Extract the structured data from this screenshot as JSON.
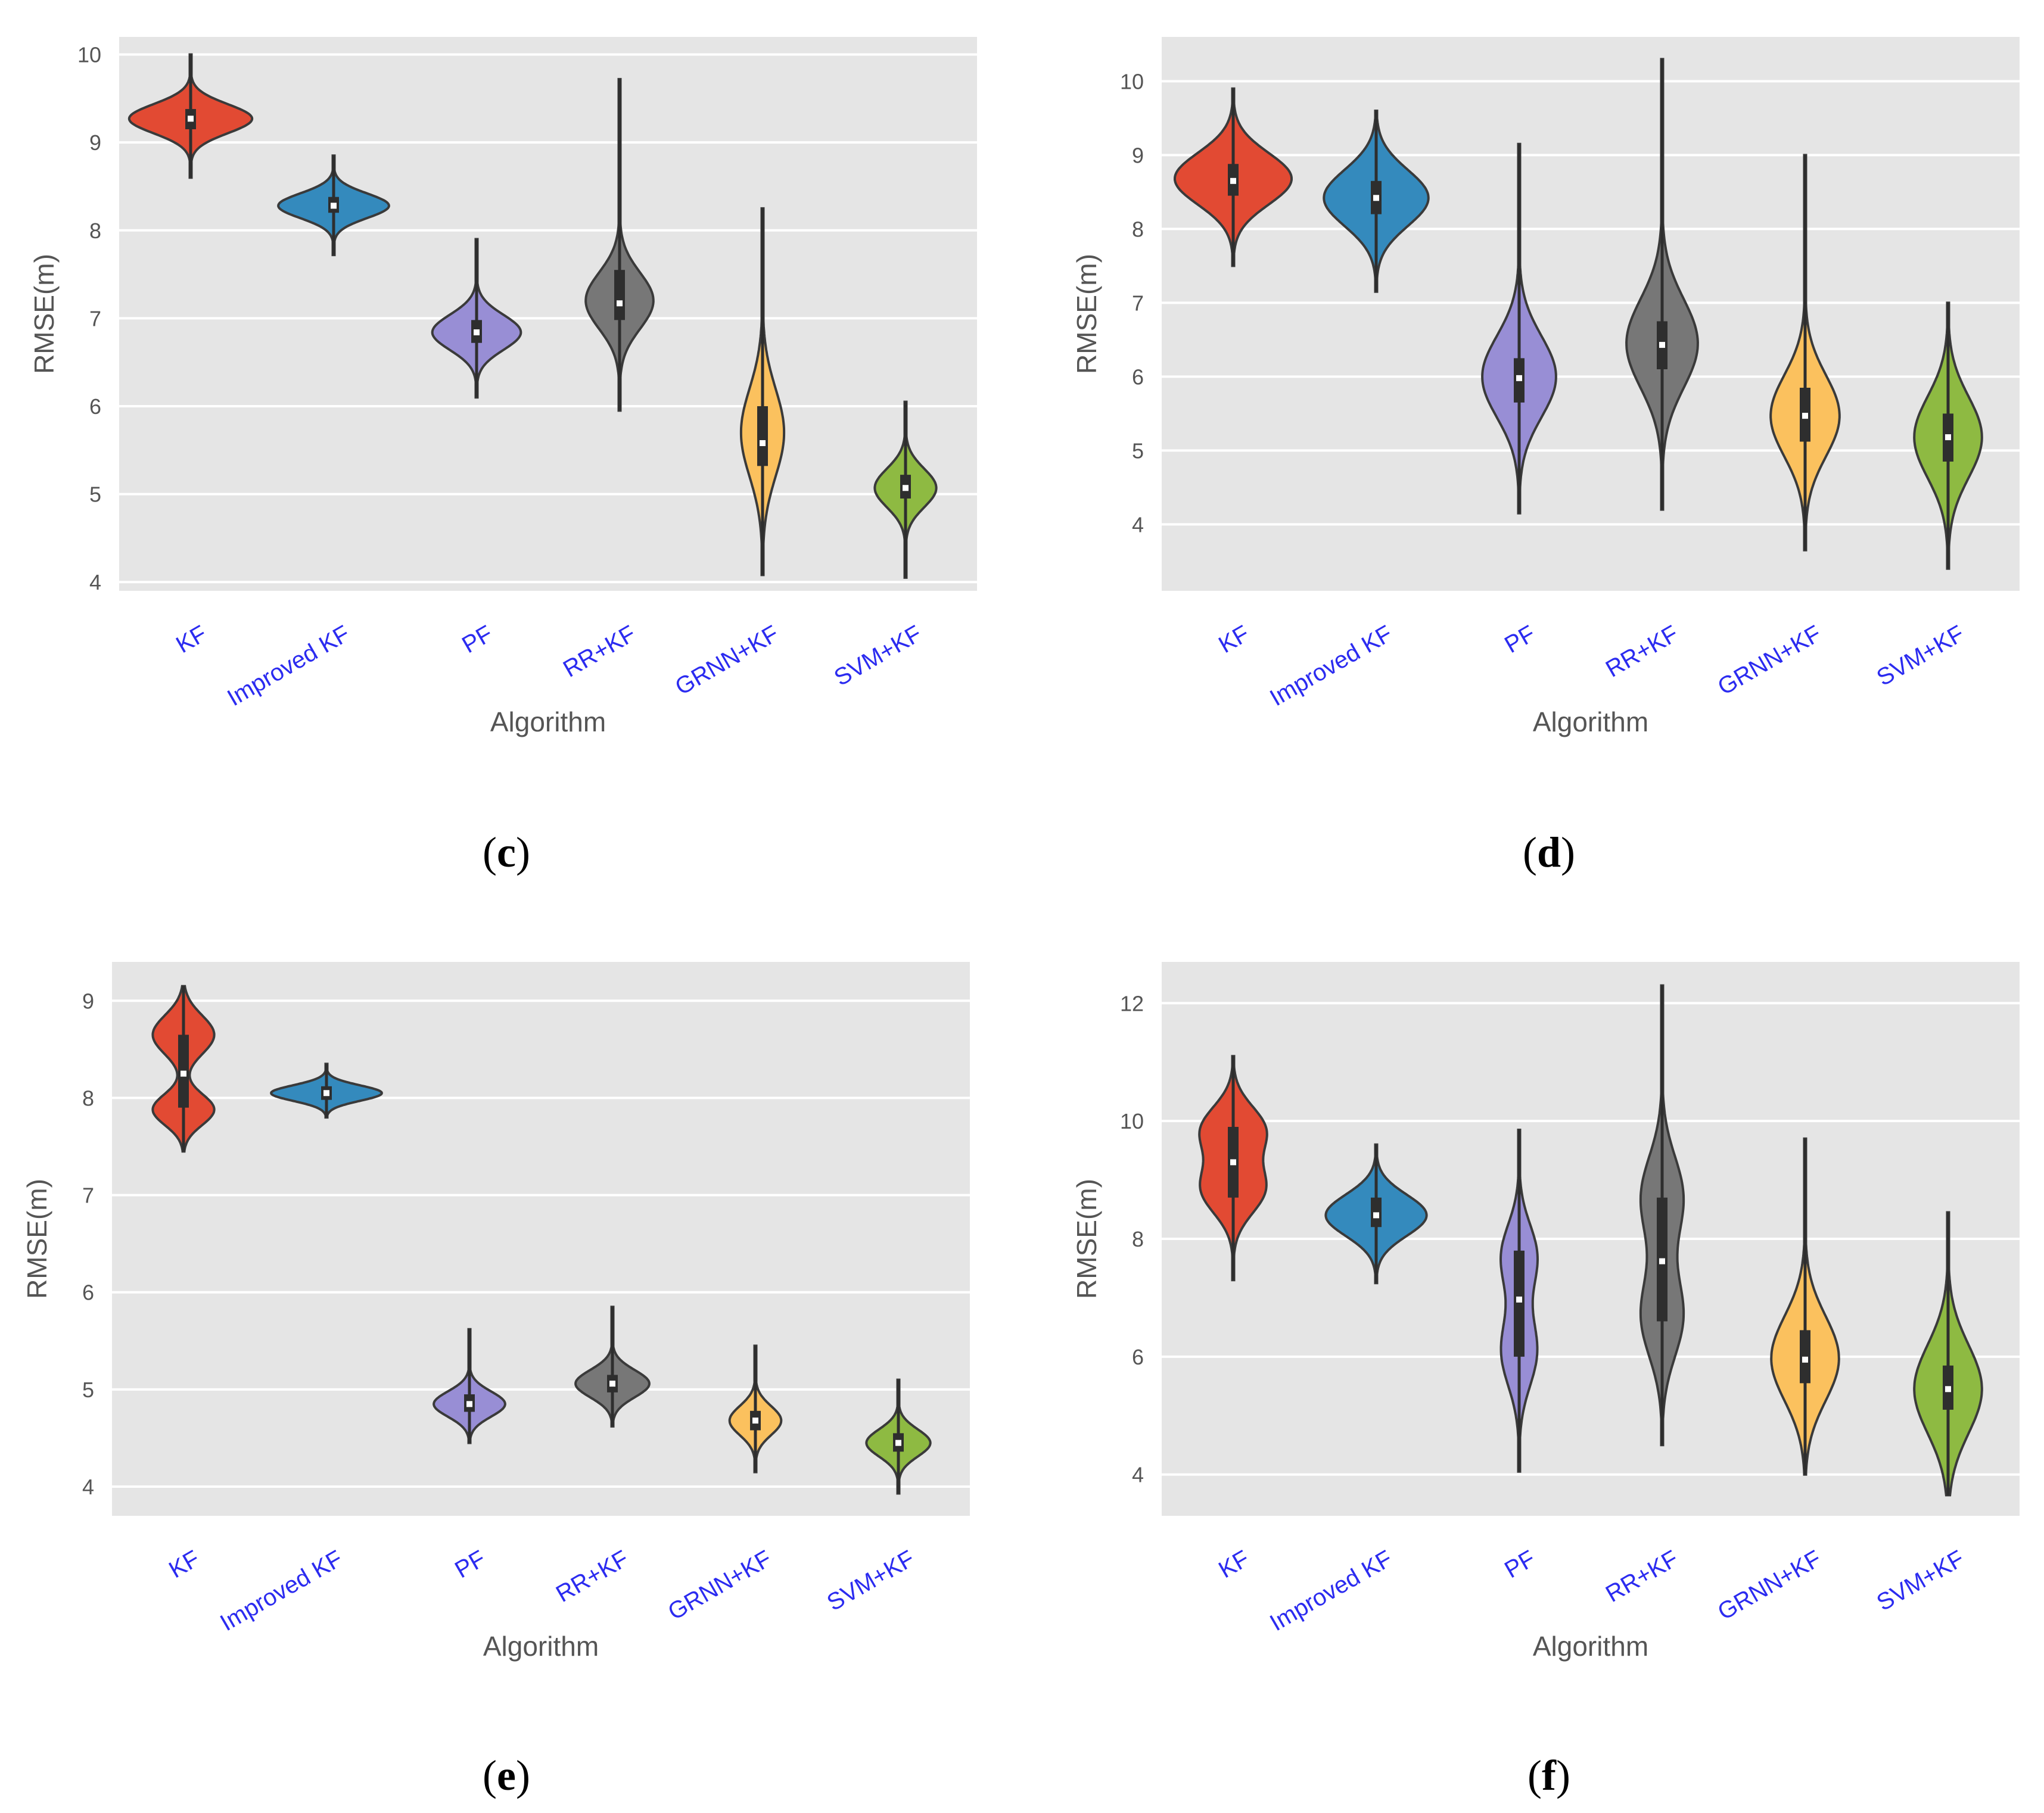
{
  "colors": {
    "plot_background": "#e5e5e5",
    "gridline": "#ffffff",
    "outline": "#3a3a3a",
    "box": "#2e2e2e",
    "median": "#ffffff",
    "tick_label_x": "#2b2bf0",
    "tick_label_y": "#555555",
    "series": {
      "KF": "#e24a33",
      "Improved KF": "#348abd",
      "PF": "#988ed5",
      "RR+KF": "#777777",
      "GRNN+KF": "#fbc15e",
      "SVM+KF": "#8eba42"
    }
  },
  "chart_data": [
    {
      "type": "violin",
      "panel_label": "c",
      "xlabel": "Algorithm",
      "ylabel": "RMSE(m)",
      "ylim": [
        3.9,
        10.2
      ],
      "yticks": [
        "4",
        "5",
        "6",
        "7",
        "8",
        "9",
        "10"
      ],
      "categories": [
        "KF",
        "Improved KF",
        "PF",
        "RR+KF",
        "GRNN+KF",
        "SVM+KF"
      ],
      "series": [
        {
          "name": "KF",
          "min": 8.6,
          "max": 10.0,
          "q1": 9.15,
          "q3": 9.38,
          "median": 9.27,
          "modes": [
            [
              9.27,
              0.165
            ]
          ],
          "max_width": 1.0
        },
        {
          "name": "Improved KF",
          "min": 7.72,
          "max": 8.85,
          "q1": 8.2,
          "q3": 8.38,
          "median": 8.28,
          "modes": [
            [
              8.28,
              0.14
            ]
          ],
          "max_width": 0.9
        },
        {
          "name": "PF",
          "min": 6.1,
          "max": 7.9,
          "q1": 6.72,
          "q3": 6.98,
          "median": 6.84,
          "modes": [
            [
              6.84,
              0.2
            ]
          ],
          "max_width": 0.72
        },
        {
          "name": "RR+KF",
          "min": 5.95,
          "max": 9.72,
          "q1": 6.98,
          "q3": 7.55,
          "median": 7.17,
          "modes": [
            [
              7.2,
              0.32
            ]
          ],
          "max_width": 0.55
        },
        {
          "name": "GRNN+KF",
          "min": 4.08,
          "max": 8.25,
          "q1": 5.32,
          "q3": 6.0,
          "median": 5.58,
          "modes": [
            [
              5.7,
              0.5
            ]
          ],
          "max_width": 0.35
        },
        {
          "name": "SVM+KF",
          "min": 4.05,
          "max": 6.05,
          "q1": 4.95,
          "q3": 5.22,
          "median": 5.07,
          "modes": [
            [
              5.07,
              0.22
            ]
          ],
          "max_width": 0.5
        }
      ]
    },
    {
      "type": "violin",
      "panel_label": "d",
      "xlabel": "Algorithm",
      "ylabel": "RMSE(m)",
      "ylim": [
        3.1,
        10.6
      ],
      "yticks": [
        "4",
        "5",
        "6",
        "7",
        "8",
        "9",
        "10"
      ],
      "categories": [
        "KF",
        "Improved KF",
        "PF",
        "RR+KF",
        "GRNN+KF",
        "SVM+KF"
      ],
      "series": [
        {
          "name": "KF",
          "min": 7.5,
          "max": 9.9,
          "q1": 8.45,
          "q3": 8.88,
          "median": 8.65,
          "modes": [
            [
              8.68,
              0.35
            ]
          ],
          "max_width": 0.95
        },
        {
          "name": "Improved KF",
          "min": 7.15,
          "max": 9.6,
          "q1": 8.2,
          "q3": 8.65,
          "median": 8.42,
          "modes": [
            [
              8.42,
              0.38
            ]
          ],
          "max_width": 0.85
        },
        {
          "name": "PF",
          "min": 4.15,
          "max": 9.15,
          "q1": 5.65,
          "q3": 6.25,
          "median": 5.98,
          "modes": [
            [
              6.0,
              0.55
            ]
          ],
          "max_width": 0.6
        },
        {
          "name": "RR+KF",
          "min": 4.2,
          "max": 10.3,
          "q1": 6.1,
          "q3": 6.75,
          "median": 6.43,
          "modes": [
            [
              6.45,
              0.6
            ]
          ],
          "max_width": 0.58
        },
        {
          "name": "GRNN+KF",
          "min": 3.65,
          "max": 9.0,
          "q1": 5.12,
          "q3": 5.85,
          "median": 5.47,
          "modes": [
            [
              5.47,
              0.55
            ]
          ],
          "max_width": 0.56
        },
        {
          "name": "SVM+KF",
          "min": 3.4,
          "max": 7.0,
          "q1": 4.85,
          "q3": 5.5,
          "median": 5.18,
          "modes": [
            [
              5.18,
              0.55
            ]
          ],
          "max_width": 0.55
        }
      ]
    },
    {
      "type": "violin",
      "panel_label": "e",
      "xlabel": "Algorithm",
      "ylabel": "RMSE(m)",
      "ylim": [
        3.7,
        9.4
      ],
      "yticks": [
        "4",
        "5",
        "6",
        "7",
        "8",
        "9"
      ],
      "categories": [
        "KF",
        "Improved KF",
        "PF",
        "RR+KF",
        "GRNN+KF",
        "SVM+KF"
      ],
      "series": [
        {
          "name": "KF",
          "min": 7.45,
          "max": 9.15,
          "q1": 7.9,
          "q3": 8.65,
          "median": 8.25,
          "modes": [
            [
              8.65,
              0.2
            ],
            [
              7.88,
              0.16
            ]
          ],
          "max_width": 0.5
        },
        {
          "name": "Improved KF",
          "min": 7.8,
          "max": 8.35,
          "q1": 7.98,
          "q3": 8.12,
          "median": 8.05,
          "modes": [
            [
              8.05,
              0.08
            ]
          ],
          "max_width": 0.9
        },
        {
          "name": "PF",
          "min": 4.45,
          "max": 5.62,
          "q1": 4.77,
          "q3": 4.95,
          "median": 4.85,
          "modes": [
            [
              4.85,
              0.13
            ]
          ],
          "max_width": 0.58
        },
        {
          "name": "RR+KF",
          "min": 4.62,
          "max": 5.85,
          "q1": 4.97,
          "q3": 5.15,
          "median": 5.06,
          "modes": [
            [
              5.06,
              0.14
            ]
          ],
          "max_width": 0.6
        },
        {
          "name": "GRNN+KF",
          "min": 4.15,
          "max": 5.45,
          "q1": 4.58,
          "q3": 4.78,
          "median": 4.68,
          "modes": [
            [
              4.68,
              0.15
            ]
          ],
          "max_width": 0.42
        },
        {
          "name": "SVM+KF",
          "min": 3.93,
          "max": 5.1,
          "q1": 4.36,
          "q3": 4.55,
          "median": 4.45,
          "modes": [
            [
              4.45,
              0.14
            ]
          ],
          "max_width": 0.52
        }
      ]
    },
    {
      "type": "violin",
      "panel_label": "f",
      "xlabel": "Algorithm",
      "ylabel": "RMSE(m)",
      "ylim": [
        3.3,
        12.7
      ],
      "yticks": [
        "4",
        "6",
        "8",
        "10",
        "12"
      ],
      "categories": [
        "KF",
        "Improved KF",
        "PF",
        "RR+KF",
        "GRNN+KF",
        "SVM+KF"
      ],
      "series": [
        {
          "name": "KF",
          "min": 7.3,
          "max": 11.1,
          "q1": 8.7,
          "q3": 9.9,
          "median": 9.3,
          "modes": [
            [
              9.85,
              0.4
            ],
            [
              8.85,
              0.42
            ]
          ],
          "max_width": 0.55
        },
        {
          "name": "Improved KF",
          "min": 7.25,
          "max": 9.6,
          "q1": 8.2,
          "q3": 8.7,
          "median": 8.4,
          "modes": [
            [
              8.4,
              0.35
            ]
          ],
          "max_width": 0.82
        },
        {
          "name": "PF",
          "min": 4.05,
          "max": 9.85,
          "q1": 6.0,
          "q3": 7.8,
          "median": 6.97,
          "modes": [
            [
              7.7,
              0.55
            ],
            [
              6.1,
              0.6
            ]
          ],
          "max_width": 0.3
        },
        {
          "name": "RR+KF",
          "min": 4.5,
          "max": 12.3,
          "q1": 6.6,
          "q3": 8.7,
          "median": 7.62,
          "modes": [
            [
              8.7,
              0.7
            ],
            [
              6.7,
              0.7
            ]
          ],
          "max_width": 0.35
        },
        {
          "name": "GRNN+KF",
          "min": 4.0,
          "max": 9.7,
          "q1": 5.55,
          "q3": 6.45,
          "median": 5.95,
          "modes": [
            [
              5.97,
              0.72
            ]
          ],
          "max_width": 0.55
        },
        {
          "name": "SVM+KF",
          "min": 3.65,
          "max": 8.45,
          "q1": 5.1,
          "q3": 5.85,
          "median": 5.45,
          "modes": [
            [
              5.45,
              0.75
            ]
          ],
          "max_width": 0.55
        }
      ]
    }
  ]
}
